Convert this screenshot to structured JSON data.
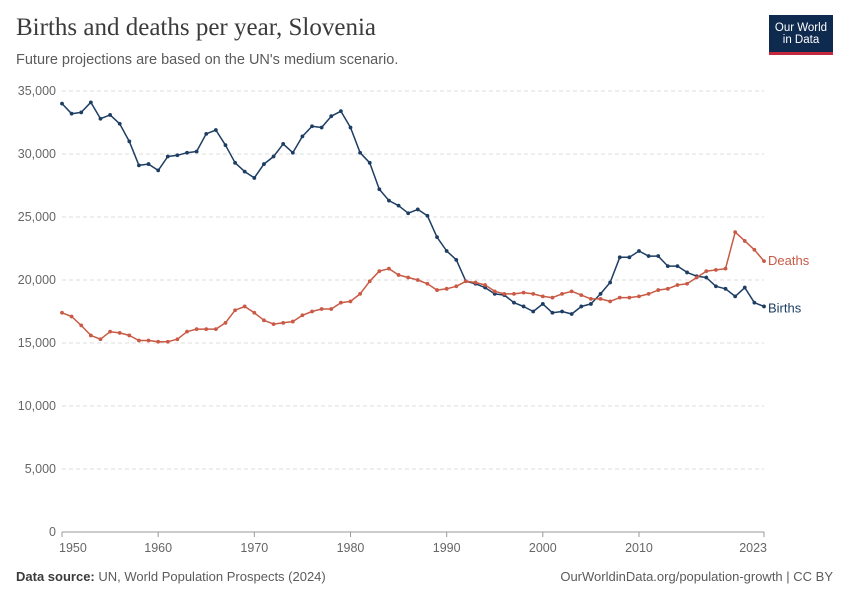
{
  "header": {
    "title": "Births and deaths per year, Slovenia",
    "subtitle": "Future projections are based on the UN's medium scenario.",
    "logo_line1": "Our World",
    "logo_line2": "in Data"
  },
  "footer": {
    "source_label": "Data source:",
    "source_text": "UN, World Population Prospects (2024)",
    "url": "OurWorldinData.org/population-growth | CC BY"
  },
  "colors": {
    "births": "#1d3d63",
    "deaths": "#c95a45",
    "grid": "#dddddd",
    "axis": "#999999"
  },
  "chart_data": {
    "type": "line",
    "title": "Births and deaths per year, Slovenia",
    "subtitle": "Future projections are based on the UN's medium scenario.",
    "xlabel": "",
    "ylabel": "",
    "xlim": [
      1950,
      2023
    ],
    "ylim": [
      0,
      35000
    ],
    "grid": true,
    "legend": "inline labels at right end of lines",
    "x_ticks": [
      1950,
      1960,
      1970,
      1980,
      1990,
      2000,
      2010,
      2023
    ],
    "y_ticks": [
      {
        "value": 0,
        "label": "0"
      },
      {
        "value": 5000,
        "label": "5,000"
      },
      {
        "value": 10000,
        "label": "10,000"
      },
      {
        "value": 15000,
        "label": "15,000"
      },
      {
        "value": 20000,
        "label": "20,000"
      },
      {
        "value": 25000,
        "label": "25,000"
      },
      {
        "value": 30000,
        "label": "30,000"
      },
      {
        "value": 35000,
        "label": "35,000"
      }
    ],
    "x": [
      1950,
      1951,
      1952,
      1953,
      1954,
      1955,
      1956,
      1957,
      1958,
      1959,
      1960,
      1961,
      1962,
      1963,
      1964,
      1965,
      1966,
      1967,
      1968,
      1969,
      1970,
      1971,
      1972,
      1973,
      1974,
      1975,
      1976,
      1977,
      1978,
      1979,
      1980,
      1981,
      1982,
      1983,
      1984,
      1985,
      1986,
      1987,
      1988,
      1989,
      1990,
      1991,
      1992,
      1993,
      1994,
      1995,
      1996,
      1997,
      1998,
      1999,
      2000,
      2001,
      2002,
      2003,
      2004,
      2005,
      2006,
      2007,
      2008,
      2009,
      2010,
      2011,
      2012,
      2013,
      2014,
      2015,
      2016,
      2017,
      2018,
      2019,
      2020,
      2021,
      2022,
      2023
    ],
    "series": [
      {
        "name": "Births",
        "values": [
          34000,
          33200,
          33300,
          34100,
          32800,
          33100,
          32400,
          31000,
          29100,
          29200,
          28700,
          29800,
          29900,
          30100,
          30200,
          31600,
          31900,
          30700,
          29300,
          28600,
          28100,
          29200,
          29800,
          30800,
          30100,
          31400,
          32200,
          32100,
          33000,
          33400,
          32100,
          30100,
          29300,
          27200,
          26300,
          25900,
          25300,
          25600,
          25100,
          23400,
          22300,
          21600,
          19900,
          19700,
          19400,
          18900,
          18800,
          18200,
          17900,
          17500,
          18100,
          17400,
          17500,
          17300,
          17900,
          18100,
          18900,
          19800,
          21800,
          21800,
          22300,
          21900,
          21900,
          21100,
          21100,
          20600,
          20300,
          20200,
          19500,
          19300,
          18700,
          19400,
          18200,
          17900
        ]
      },
      {
        "name": "Deaths",
        "values": [
          17400,
          17100,
          16400,
          15600,
          15300,
          15900,
          15800,
          15600,
          15200,
          15200,
          15100,
          15100,
          15300,
          15900,
          16100,
          16100,
          16100,
          16600,
          17600,
          17900,
          17400,
          16800,
          16500,
          16600,
          16700,
          17200,
          17500,
          17700,
          17700,
          18200,
          18300,
          18900,
          19900,
          20700,
          20900,
          20400,
          20200,
          20000,
          19700,
          19200,
          19300,
          19500,
          19900,
          19800,
          19600,
          19100,
          18900,
          18900,
          19000,
          18900,
          18700,
          18600,
          18900,
          19100,
          18800,
          18500,
          18500,
          18300,
          18600,
          18600,
          18700,
          18900,
          19200,
          19300,
          19600,
          19700,
          20200,
          20700,
          20800,
          20900,
          23800,
          23100,
          22400,
          21500
        ]
      }
    ]
  }
}
